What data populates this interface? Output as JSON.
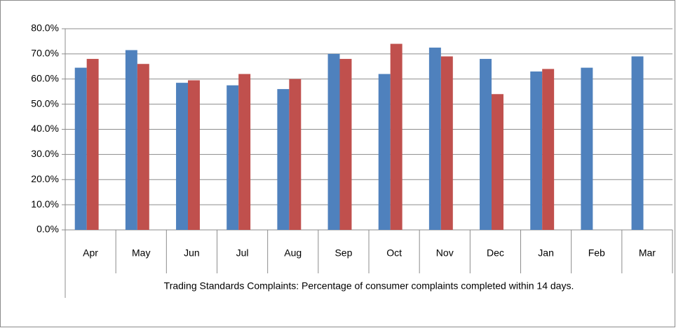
{
  "chart_data": {
    "type": "bar",
    "title": "Trading Standards Complaints: Percentage of consumer complaints completed within 14 days.",
    "categories": [
      "Apr",
      "May",
      "Jun",
      "Jul",
      "Aug",
      "Sep",
      "Oct",
      "Nov",
      "Dec",
      "Jan",
      "Feb",
      "Mar"
    ],
    "series": [
      {
        "color": "#4f81bd",
        "values": [
          64.5,
          71.5,
          58.5,
          57.5,
          56,
          70,
          62,
          72.5,
          68,
          63,
          64.5,
          69
        ]
      },
      {
        "color": "#c0504d",
        "values": [
          68,
          66,
          59.5,
          62,
          60,
          68,
          74,
          69,
          54,
          64,
          null,
          null
        ]
      }
    ],
    "ylim": [
      0,
      80
    ],
    "yticks": [
      {
        "value": 0,
        "label": "0.0%"
      },
      {
        "value": 10,
        "label": "10.0%"
      },
      {
        "value": 20,
        "label": "20.0%"
      },
      {
        "value": 30,
        "label": "30.0%"
      },
      {
        "value": 40,
        "label": "40.0%"
      },
      {
        "value": 50,
        "label": "50.0%"
      },
      {
        "value": 60,
        "label": "60.0%"
      },
      {
        "value": 70,
        "label": "70.0%"
      },
      {
        "value": 80,
        "label": "80.0%"
      }
    ],
    "grid": true
  }
}
